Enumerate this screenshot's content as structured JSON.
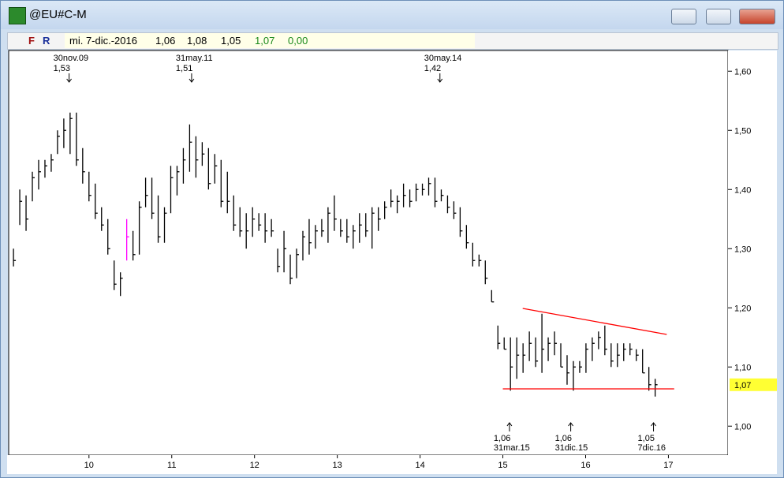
{
  "window": {
    "title": "@EU#C-M"
  },
  "header": {
    "buttons": [
      "F",
      "R"
    ],
    "date": "mi. 7-dic.-2016",
    "open": "1,06",
    "high": "1,08",
    "low": "1,05",
    "close": "1,07",
    "change": "0,00"
  },
  "chart_data": {
    "type": "hlc",
    "color": "#000000",
    "highlight": {
      "index": 18,
      "color": "#ff00ff"
    },
    "x": [
      9.088,
      9.164,
      9.24,
      9.316,
      9.392,
      9.468,
      9.544,
      9.62,
      9.696,
      9.772,
      9.848,
      9.924,
      10.0,
      10.076,
      10.152,
      10.228,
      10.304,
      10.38,
      10.456,
      10.532,
      10.608,
      10.684,
      10.76,
      10.836,
      10.912,
      10.988,
      11.064,
      11.14,
      11.216,
      11.292,
      11.368,
      11.444,
      11.52,
      11.596,
      11.672,
      11.748,
      11.824,
      11.9,
      11.976,
      12.052,
      12.128,
      12.204,
      12.28,
      12.356,
      12.432,
      12.508,
      12.584,
      12.66,
      12.736,
      12.812,
      12.888,
      12.964,
      13.04,
      13.116,
      13.192,
      13.268,
      13.344,
      13.42,
      13.496,
      13.572,
      13.648,
      13.724,
      13.8,
      13.876,
      13.952,
      14.028,
      14.104,
      14.18,
      14.256,
      14.332,
      14.408,
      14.484,
      14.56,
      14.636,
      14.712,
      14.788,
      14.864,
      14.94,
      15.016,
      15.092,
      15.168,
      15.244,
      15.32,
      15.396,
      15.472,
      15.548,
      15.624,
      15.7,
      15.776,
      15.852,
      15.928,
      16.004,
      16.08,
      16.156,
      16.232,
      16.308,
      16.384,
      16.46,
      16.536,
      16.612,
      16.688,
      16.764,
      16.84
    ],
    "high": [
      1.3,
      1.4,
      1.39,
      1.43,
      1.45,
      1.45,
      1.46,
      1.5,
      1.52,
      1.53,
      1.53,
      1.47,
      1.43,
      1.41,
      1.37,
      1.35,
      1.28,
      1.26,
      1.35,
      1.33,
      1.38,
      1.42,
      1.42,
      1.39,
      1.37,
      1.44,
      1.44,
      1.47,
      1.51,
      1.49,
      1.48,
      1.47,
      1.46,
      1.45,
      1.43,
      1.39,
      1.37,
      1.36,
      1.37,
      1.36,
      1.36,
      1.35,
      1.3,
      1.33,
      1.29,
      1.3,
      1.33,
      1.35,
      1.34,
      1.35,
      1.37,
      1.39,
      1.35,
      1.35,
      1.34,
      1.36,
      1.36,
      1.37,
      1.37,
      1.38,
      1.4,
      1.39,
      1.41,
      1.4,
      1.41,
      1.41,
      1.42,
      1.42,
      1.4,
      1.39,
      1.38,
      1.37,
      1.34,
      1.31,
      1.29,
      1.28,
      1.23,
      1.17,
      1.15,
      1.15,
      1.15,
      1.14,
      1.16,
      1.15,
      1.19,
      1.15,
      1.16,
      1.14,
      1.12,
      1.11,
      1.11,
      1.14,
      1.15,
      1.16,
      1.17,
      1.14,
      1.14,
      1.14,
      1.14,
      1.13,
      1.13,
      1.1,
      1.08
    ],
    "low": [
      1.27,
      1.34,
      1.33,
      1.38,
      1.4,
      1.42,
      1.43,
      1.46,
      1.47,
      1.46,
      1.44,
      1.41,
      1.38,
      1.35,
      1.33,
      1.29,
      1.23,
      1.22,
      1.28,
      1.28,
      1.29,
      1.37,
      1.35,
      1.31,
      1.31,
      1.36,
      1.39,
      1.41,
      1.43,
      1.42,
      1.44,
      1.4,
      1.41,
      1.37,
      1.36,
      1.33,
      1.32,
      1.3,
      1.32,
      1.33,
      1.31,
      1.32,
      1.26,
      1.26,
      1.24,
      1.25,
      1.28,
      1.29,
      1.3,
      1.32,
      1.31,
      1.33,
      1.32,
      1.31,
      1.3,
      1.31,
      1.32,
      1.3,
      1.33,
      1.35,
      1.37,
      1.36,
      1.37,
      1.37,
      1.38,
      1.39,
      1.39,
      1.37,
      1.38,
      1.36,
      1.35,
      1.32,
      1.3,
      1.27,
      1.27,
      1.24,
      1.21,
      1.13,
      1.13,
      1.06,
      1.08,
      1.09,
      1.11,
      1.1,
      1.09,
      1.11,
      1.12,
      1.1,
      1.07,
      1.06,
      1.09,
      1.09,
      1.11,
      1.13,
      1.12,
      1.1,
      1.1,
      1.11,
      1.12,
      1.11,
      1.09,
      1.06,
      1.05
    ],
    "close": [
      1.28,
      1.38,
      1.35,
      1.42,
      1.43,
      1.44,
      1.45,
      1.49,
      1.5,
      1.52,
      1.45,
      1.43,
      1.39,
      1.36,
      1.34,
      1.3,
      1.24,
      1.25,
      1.32,
      1.29,
      1.37,
      1.39,
      1.36,
      1.32,
      1.36,
      1.42,
      1.43,
      1.45,
      1.48,
      1.45,
      1.46,
      1.41,
      1.44,
      1.38,
      1.38,
      1.34,
      1.33,
      1.33,
      1.35,
      1.34,
      1.33,
      1.33,
      1.27,
      1.3,
      1.25,
      1.29,
      1.32,
      1.31,
      1.33,
      1.33,
      1.36,
      1.35,
      1.33,
      1.32,
      1.33,
      1.34,
      1.33,
      1.36,
      1.35,
      1.37,
      1.38,
      1.38,
      1.39,
      1.38,
      1.4,
      1.4,
      1.41,
      1.38,
      1.39,
      1.37,
      1.36,
      1.33,
      1.31,
      1.28,
      1.28,
      1.25,
      1.21,
      1.14,
      1.13,
      1.1,
      1.12,
      1.12,
      1.14,
      1.11,
      1.13,
      1.14,
      1.14,
      1.1,
      1.09,
      1.1,
      1.1,
      1.13,
      1.14,
      1.15,
      1.13,
      1.11,
      1.12,
      1.13,
      1.13,
      1.12,
      1.09,
      1.07,
      1.07
    ],
    "xlim": [
      9.03,
      17.72
    ],
    "ylim": [
      0.951,
      1.635
    ],
    "xticks": [
      10,
      11,
      12,
      13,
      14,
      15,
      16,
      17
    ],
    "yticks": [
      {
        "value": 1.0,
        "label": "1,00"
      },
      {
        "value": 1.1,
        "label": "1,10"
      },
      {
        "value": 1.2,
        "label": "1,20"
      },
      {
        "value": 1.3,
        "label": "1,30"
      },
      {
        "value": 1.4,
        "label": "1,40"
      },
      {
        "value": 1.5,
        "label": "1,50"
      },
      {
        "value": 1.6,
        "label": "1,60"
      }
    ],
    "last_price": {
      "value": 1.07,
      "label": "1,07",
      "color": "#ffff33"
    },
    "trend_lines": [
      {
        "color": "#ff0000",
        "x": [
          15.24,
          16.98
        ],
        "y": [
          1.199,
          1.155
        ]
      },
      {
        "color": "#ff0000",
        "x": [
          15.0,
          17.07
        ],
        "y": [
          1.063,
          1.063
        ]
      }
    ],
    "annotations": [
      {
        "date": "30nov.09",
        "price": "1,53",
        "x": 9.76,
        "position": "top"
      },
      {
        "date": "31may.11",
        "price": "1,51",
        "x": 11.24,
        "position": "top"
      },
      {
        "date": "30may.14",
        "price": "1,42",
        "x": 14.24,
        "position": "top"
      },
      {
        "date": "31mar.15",
        "price": "1,06",
        "x": 15.08,
        "position": "bottom"
      },
      {
        "date": "31dic.15",
        "price": "1,06",
        "x": 15.82,
        "position": "bottom"
      },
      {
        "date": "7dic.16",
        "price": "1,05",
        "x": 16.82,
        "position": "bottom"
      }
    ]
  }
}
